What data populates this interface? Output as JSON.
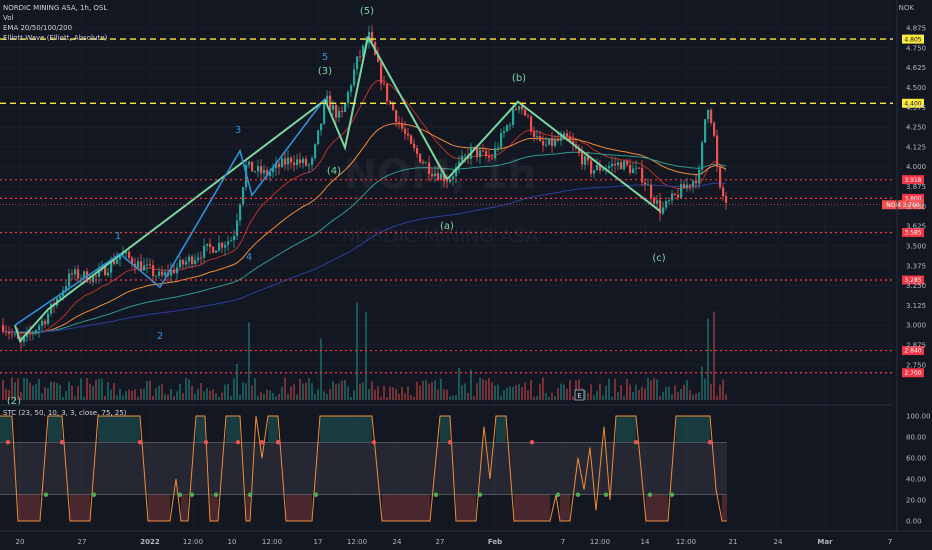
{
  "legend": {
    "title": "NORDIC MINING ASA, 1h, OSL",
    "vol": "Vol",
    "ema": "EMA 20/50/100/200",
    "elliott": "Elliott Wave (Elliott, Absolute)",
    "stc": "STC (23, 50, 10, 3, 3, close, 75, 25)"
  },
  "currency": "NOK",
  "watermark": {
    "ticker": "NOM, 1h",
    "name": "NORDIC MINING ASA"
  },
  "colors": {
    "bg": "#131722",
    "grid": "#1f2430",
    "up": "#26a69a",
    "down": "#ef5350",
    "yellow_line": "#ffeb3b",
    "red_line": "#f23645",
    "wave_green": "#7ad6a1",
    "wave_blue": "#2f8fd8",
    "ema_red": "#b7302d",
    "ema_orange": "#f08c38",
    "ema_teal": "#2e9a8e",
    "ema_navy": "#2b3e9c"
  },
  "price_axis_ticks": [
    "4.875",
    "4.750",
    "4.625",
    "4.500",
    "4.375",
    "4.250",
    "4.125",
    "4.000",
    "3.875",
    "3.750",
    "3.625",
    "3.500",
    "3.375",
    "3.250",
    "3.125",
    "3.000",
    "2.875",
    "2.750"
  ],
  "stc_axis_ticks": [
    "100.00",
    "80.00",
    "60.00",
    "40.00",
    "20.00",
    "0.00"
  ],
  "time_axis_ticks": [
    "20",
    "27",
    "2022",
    "12:00",
    "10",
    "12:00",
    "17",
    "12:00",
    "24",
    "27",
    "Feb",
    "7",
    "12:00",
    "14",
    "12:00",
    "21",
    "24",
    "Mar",
    "7"
  ],
  "horizontal_levels": [
    {
      "price": 4.805,
      "label": "4.805",
      "style": "yellow"
    },
    {
      "price": 4.4,
      "label": "4.400",
      "style": "yellow"
    },
    {
      "price": 3.918,
      "label": "3.918",
      "style": "red"
    },
    {
      "price": 3.8,
      "label": "3.800",
      "style": "red"
    },
    {
      "price": 3.585,
      "label": "3.585",
      "style": "red"
    },
    {
      "price": 3.285,
      "label": "3.285",
      "style": "red"
    },
    {
      "price": 2.84,
      "label": "2.840",
      "style": "red"
    },
    {
      "price": 2.7,
      "label": "2.700",
      "style": "red"
    }
  ],
  "current_price": {
    "price": 3.76,
    "label": "NOM 3.760"
  },
  "wave_labels": [
    {
      "text": "1",
      "color": "blue"
    },
    {
      "text": "2",
      "color": "blue"
    },
    {
      "text": "3",
      "color": "blue"
    },
    {
      "text": "4",
      "color": "blue"
    },
    {
      "text": "5",
      "color": "blue"
    },
    {
      "text": "(3)",
      "color": "green"
    },
    {
      "text": "(4)",
      "color": "green"
    },
    {
      "text": "(5)",
      "color": "green"
    },
    {
      "text": "(a)",
      "color": "green"
    },
    {
      "text": "(b)",
      "color": "green"
    },
    {
      "text": "(c)",
      "color": "green"
    },
    {
      "text": "(2)",
      "color": "green"
    }
  ],
  "elliott_pivots": {
    "green_impulse": [
      3.0,
      2.9,
      3.1,
      4.42,
      4.12,
      4.82
    ],
    "green_correction": [
      4.82,
      3.92,
      4.41,
      3.72
    ],
    "blue_impulse": [
      3.0,
      3.45,
      3.24,
      4.1,
      3.82,
      4.43
    ]
  },
  "e_marker": "E"
}
